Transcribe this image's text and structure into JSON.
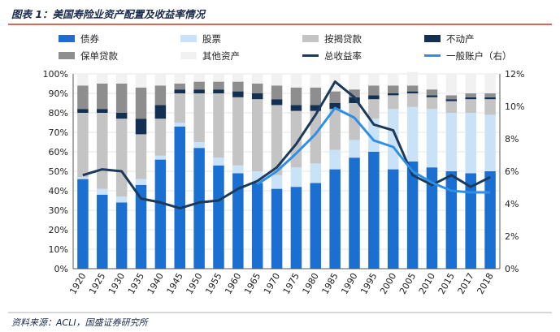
{
  "header": {
    "title": "图表 1：美国寿险业资产配置及收益率情况"
  },
  "footer": {
    "source": "资料来源：ACLI，国盛证券研究所"
  },
  "colors": {
    "bond": "#1a6fd0",
    "stock": "#c9e2f8",
    "mortgage": "#c4c4c4",
    "realestate": "#132f52",
    "policyloan": "#8e8e8e",
    "other": "#f1f1f1",
    "total_yield": "#1b3a5c",
    "general_account": "#2f8fe6",
    "title_rule": "#c0392b"
  },
  "chart_data": {
    "type": "bar",
    "stacked": true,
    "categories": [
      "1920",
      "1925",
      "1930",
      "1935",
      "1940",
      "1945",
      "1950",
      "1955",
      "1960",
      "1965",
      "1970",
      "1975",
      "1980",
      "1985",
      "1990",
      "1995",
      "2000",
      "2005",
      "2010",
      "2015",
      "2017",
      "2018"
    ],
    "series": [
      {
        "key": "bond",
        "name": "债券",
        "values": [
          46,
          38,
          34,
          43,
          56,
          73,
          62,
          53,
          49,
          44,
          41,
          42,
          44,
          51,
          57,
          60,
          51,
          55,
          52,
          50,
          49,
          50
        ]
      },
      {
        "key": "stock",
        "name": "股票",
        "values": [
          1,
          3,
          3,
          3,
          2,
          2,
          3,
          4,
          4,
          6,
          7,
          10,
          10,
          10,
          9,
          17,
          31,
          28,
          30,
          30,
          31,
          29
        ]
      },
      {
        "key": "mortgage",
        "name": "按揭贷款",
        "values": [
          33,
          39,
          40,
          23,
          19,
          15,
          25,
          33,
          35,
          37,
          36,
          29,
          27,
          21,
          19,
          10,
          7,
          7,
          6,
          6,
          7,
          8
        ]
      },
      {
        "key": "realestate",
        "name": "不动产",
        "values": [
          2,
          2,
          3,
          8,
          7,
          2,
          2,
          2,
          3,
          3,
          3,
          3,
          3,
          3,
          3,
          2,
          1,
          1,
          1,
          1,
          1,
          1
        ]
      },
      {
        "key": "policyloan",
        "name": "保单贷款",
        "values": [
          12,
          13,
          15,
          16,
          10,
          3,
          4,
          4,
          5,
          5,
          7,
          9,
          9,
          6,
          4,
          5,
          4,
          3,
          3,
          2,
          2,
          2
        ]
      },
      {
        "key": "other",
        "name": "其他资产",
        "values": [
          6,
          5,
          5,
          7,
          6,
          5,
          4,
          4,
          4,
          5,
          6,
          7,
          7,
          9,
          8,
          6,
          6,
          7,
          8,
          11,
          10,
          10
        ]
      }
    ],
    "lines": [
      {
        "key": "total_yield",
        "name": "总收益率",
        "axis": "left",
        "values": [
          0.48,
          0.51,
          0.5,
          0.36,
          0.34,
          0.31,
          0.34,
          0.35,
          0.41,
          0.45,
          0.52,
          0.64,
          0.79,
          0.96,
          0.88,
          0.74,
          0.71,
          0.48,
          0.43,
          0.48,
          0.42,
          0.47
        ]
      },
      {
        "key": "general_account",
        "name": "一般账户（右）",
        "axis": "right",
        "values": [
          null,
          null,
          null,
          null,
          null,
          null,
          null,
          null,
          null,
          5.2,
          6.0,
          7.1,
          8.3,
          9.9,
          9.3,
          7.9,
          7.5,
          6.0,
          5.3,
          4.8,
          4.7,
          4.7
        ]
      }
    ],
    "y_left": {
      "min": 0,
      "max": 100,
      "step": 10,
      "labels": [
        "0%",
        "10%",
        "20%",
        "30%",
        "40%",
        "50%",
        "60%",
        "70%",
        "80%",
        "90%",
        "100%"
      ]
    },
    "y_right": {
      "min": 0,
      "max": 12,
      "step": 2,
      "labels": [
        "0%",
        "2%",
        "4%",
        "6%",
        "8%",
        "10%",
        "12%"
      ]
    },
    "legend": [
      {
        "key": "bond",
        "label": "债券",
        "kind": "box"
      },
      {
        "key": "stock",
        "label": "股票",
        "kind": "box"
      },
      {
        "key": "mortgage",
        "label": "按揭贷款",
        "kind": "box"
      },
      {
        "key": "realestate",
        "label": "不动产",
        "kind": "box"
      },
      {
        "key": "policyloan",
        "label": "保单贷款",
        "kind": "box"
      },
      {
        "key": "other",
        "label": "其他资产",
        "kind": "box"
      },
      {
        "key": "total_yield",
        "label": "总收益率",
        "kind": "line"
      },
      {
        "key": "general_account",
        "label": "一般账户（右）",
        "kind": "line"
      }
    ],
    "legend_position": "top"
  }
}
